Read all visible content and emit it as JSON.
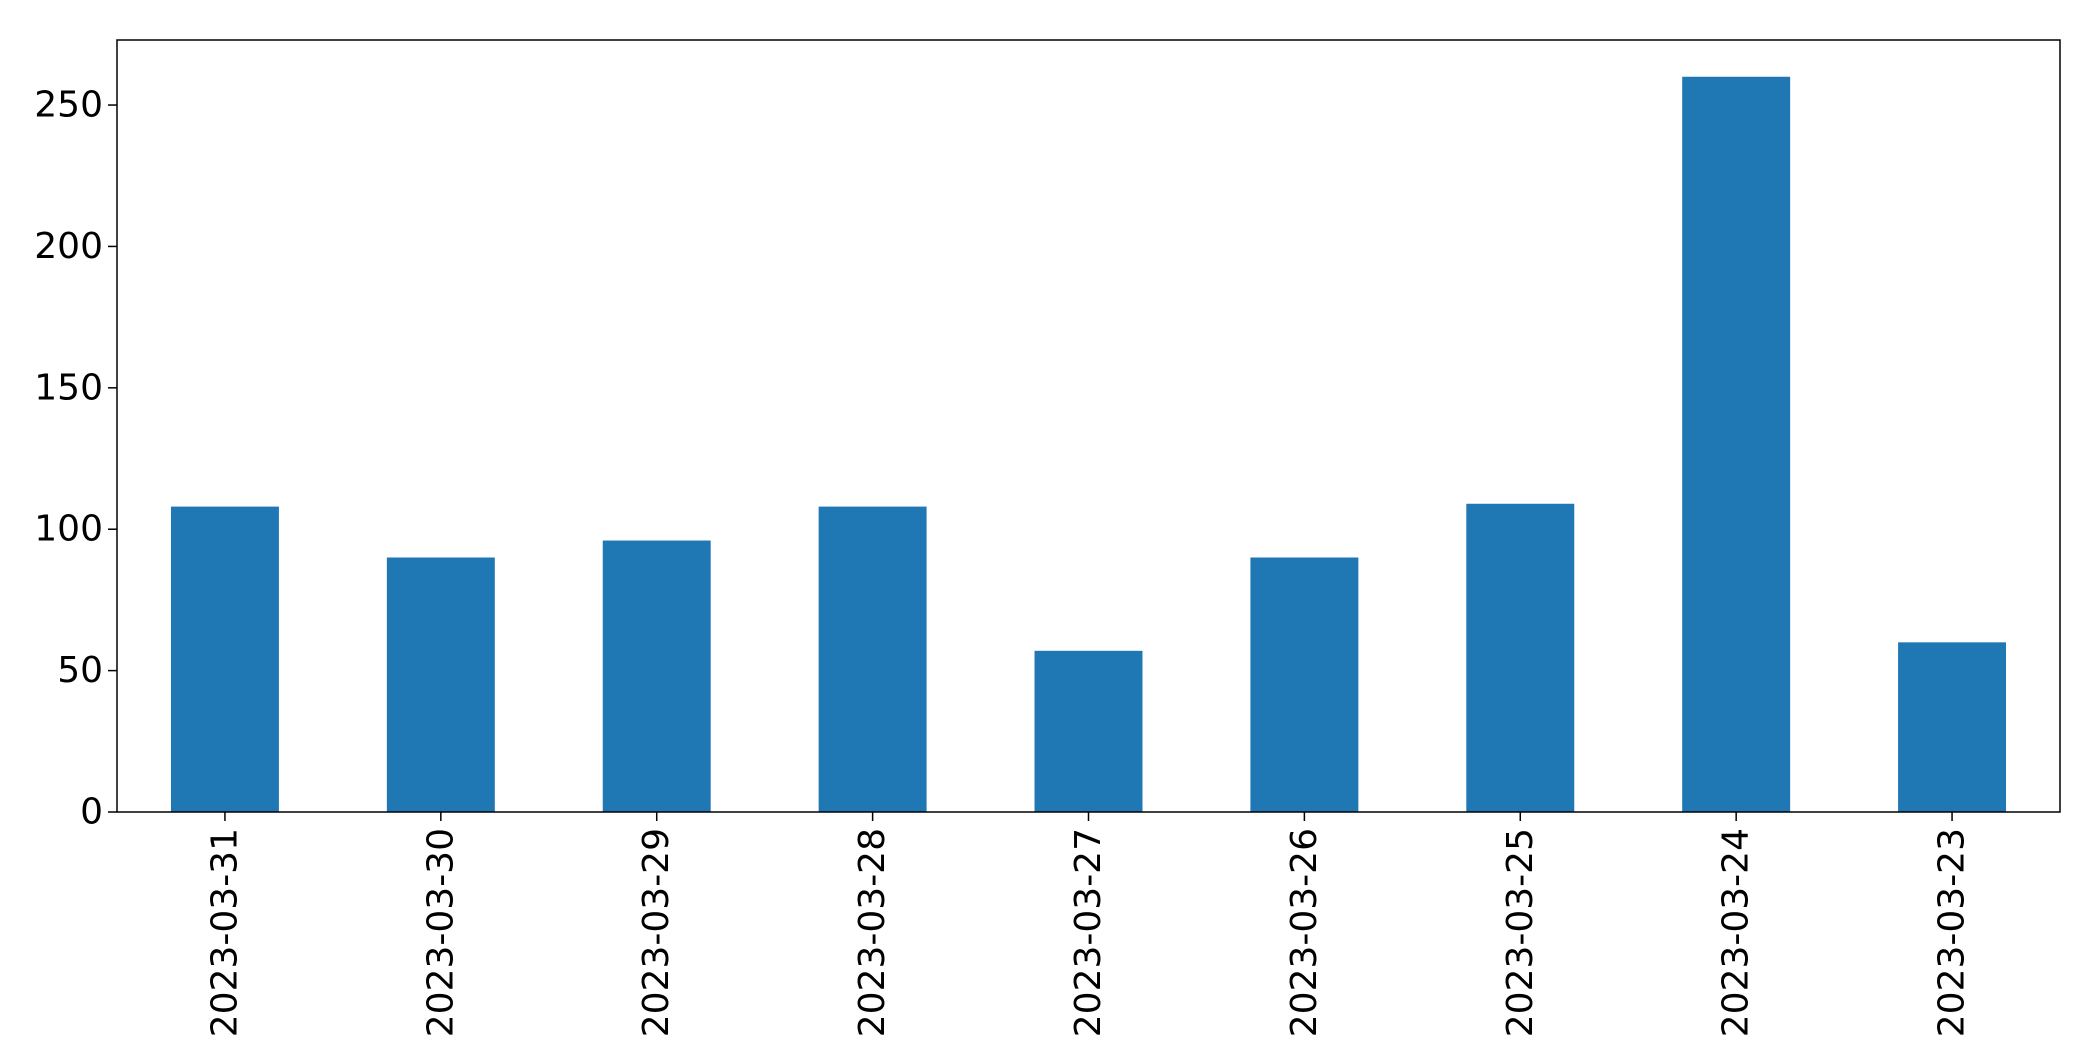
{
  "chart_data": {
    "type": "bar",
    "title": "",
    "xlabel": "",
    "ylabel": "",
    "categories": [
      "2023-03-31",
      "2023-03-30",
      "2023-03-29",
      "2023-03-28",
      "2023-03-27",
      "2023-03-26",
      "2023-03-25",
      "2023-03-24",
      "2023-03-23"
    ],
    "values": [
      108,
      90,
      96,
      108,
      57,
      90,
      109,
      260,
      60
    ],
    "ylim": [
      0,
      273
    ],
    "yticks": [
      0,
      50,
      100,
      150,
      200,
      250
    ],
    "bar_color": "#1f77b4",
    "grid": false,
    "legend": "none"
  }
}
